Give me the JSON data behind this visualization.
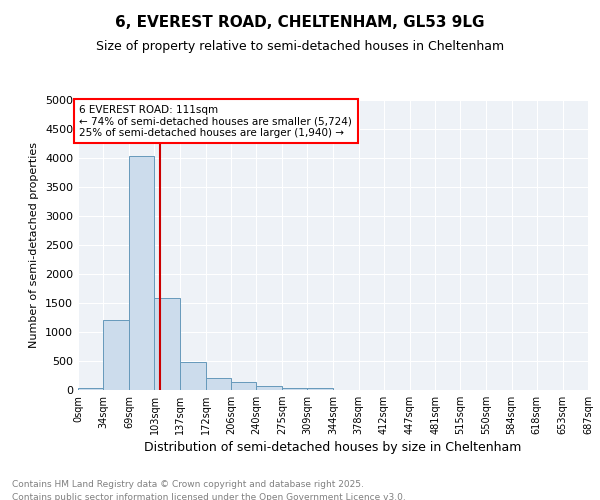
{
  "title_line1": "6, EVEREST ROAD, CHELTENHAM, GL53 9LG",
  "title_line2": "Size of property relative to semi-detached houses in Cheltenham",
  "xlabel": "Distribution of semi-detached houses by size in Cheltenham",
  "ylabel": "Number of semi-detached properties",
  "footer_line1": "Contains HM Land Registry data © Crown copyright and database right 2025.",
  "footer_line2": "Contains public sector information licensed under the Open Government Licence v3.0.",
  "annotation_line1": "6 EVEREST ROAD: 111sqm",
  "annotation_line2": "← 74% of semi-detached houses are smaller (5,724)",
  "annotation_line3": "25% of semi-detached houses are larger (1,940) →",
  "property_size": 111,
  "bar_edges": [
    0,
    34,
    69,
    103,
    137,
    172,
    206,
    240,
    275,
    309,
    344,
    378,
    412,
    447,
    481,
    515,
    550,
    584,
    618,
    653,
    687
  ],
  "bar_heights": [
    30,
    1200,
    4030,
    1580,
    480,
    200,
    135,
    65,
    40,
    30,
    0,
    0,
    0,
    0,
    0,
    0,
    0,
    0,
    0,
    0
  ],
  "bar_color": "#ccdcec",
  "bar_edge_color": "#6699bb",
  "red_line_color": "#cc0000",
  "background_color": "#eef2f7",
  "ylim": [
    0,
    5000
  ],
  "yticks": [
    0,
    500,
    1000,
    1500,
    2000,
    2500,
    3000,
    3500,
    4000,
    4500,
    5000
  ],
  "tick_labels": [
    "0sqm",
    "34sqm",
    "69sqm",
    "103sqm",
    "137sqm",
    "172sqm",
    "206sqm",
    "240sqm",
    "275sqm",
    "309sqm",
    "344sqm",
    "378sqm",
    "412sqm",
    "447sqm",
    "481sqm",
    "515sqm",
    "550sqm",
    "584sqm",
    "618sqm",
    "653sqm",
    "687sqm"
  ]
}
